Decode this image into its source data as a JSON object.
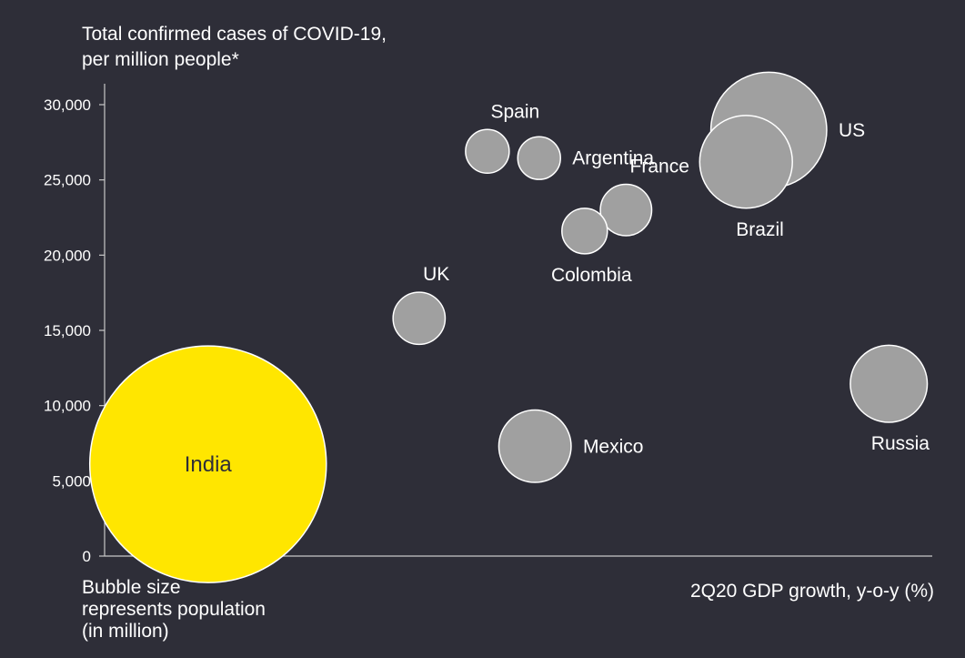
{
  "chart_data": {
    "type": "scatter",
    "title": "",
    "ylabel_line1": "Total confirmed cases of COVID-19,",
    "ylabel_line2": "per million people*",
    "xlabel": "2Q20 GDP growth, y-o-y (%)",
    "size_note_line1": "Bubble size",
    "size_note_line2": "represents population",
    "size_note_line3": "(in million)",
    "ylim": [
      0,
      30000
    ],
    "yticks": [
      0,
      5000,
      10000,
      15000,
      20000,
      25000,
      30000
    ],
    "ytick_labels": [
      "0",
      "5,000",
      "10,000",
      "15,000",
      "20,000",
      "25,000",
      "30,000"
    ],
    "xlim": [
      -40,
      0
    ],
    "grid": false,
    "x_tick_labels_shown": false,
    "points": [
      {
        "label": "India",
        "x": -35.0,
        "y": 6100,
        "population": 1380,
        "color": "#ffe600",
        "label_pos": "center"
      },
      {
        "label": "Spain",
        "x": -21.5,
        "y": 26900,
        "population": 47,
        "color": "#a0a0a0",
        "label_pos": "above-right"
      },
      {
        "label": "Argentina",
        "x": -19.0,
        "y": 26450,
        "population": 45,
        "color": "#a0a0a0",
        "label_pos": "right"
      },
      {
        "label": "Colombia",
        "x": -16.8,
        "y": 21600,
        "population": 51,
        "color": "#a0a0a0",
        "label_pos": "below"
      },
      {
        "label": "France",
        "x": -14.8,
        "y": 23000,
        "population": 65,
        "color": "#a0a0a0",
        "label_pos": "above-right"
      },
      {
        "label": "UK",
        "x": -24.8,
        "y": 15800,
        "population": 67,
        "color": "#a0a0a0",
        "label_pos": "above-right"
      },
      {
        "label": "Mexico",
        "x": -19.2,
        "y": 7300,
        "population": 129,
        "color": "#a0a0a0",
        "label_pos": "right"
      },
      {
        "label": "Brazil",
        "x": -9.0,
        "y": 26200,
        "population": 212,
        "color": "#a0a0a0",
        "label_pos": "below"
      },
      {
        "label": "US",
        "x": -7.9,
        "y": 28300,
        "population": 331,
        "color": "#a0a0a0",
        "label_pos": "right"
      },
      {
        "label": "Russia",
        "x": -2.1,
        "y": 11450,
        "population": 146,
        "color": "#a0a0a0",
        "label_pos": "below"
      }
    ]
  },
  "colors": {
    "background": "#2e2e38",
    "axis": "#c8c8c8",
    "highlight": "#ffe600",
    "bubble": "#a0a0a0",
    "text": "#ffffff"
  }
}
